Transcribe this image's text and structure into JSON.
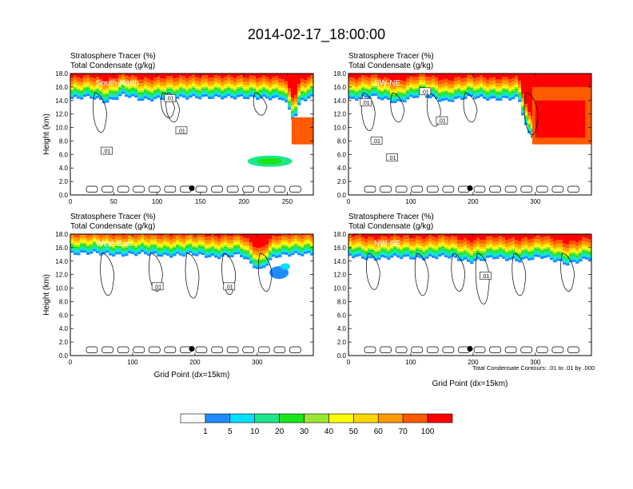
{
  "title": "2014-02-17_18:00:00",
  "colors": {
    "levels": [
      "#ffffff",
      "#1e8cff",
      "#00e0ff",
      "#1ee68c",
      "#19e619",
      "#9be632",
      "#ffff00",
      "#ffd700",
      "#ff9b00",
      "#ff5a00",
      "#ff0000"
    ]
  },
  "footnote": "Total Condensate Contours: .01 to .01 by .000",
  "chart_data": [
    {
      "type": "heatmap",
      "panel": "top-left",
      "region_label": "South-North",
      "title_lines": [
        "Stratosphere Tracer   (%)",
        "Total Condensate   (g/kg)"
      ],
      "ylabel": "Height (km)",
      "xlabel": "",
      "xlim": [
        0,
        280
      ],
      "ylim": [
        0,
        18
      ],
      "xticks": [
        0,
        50,
        100,
        150,
        200,
        250
      ],
      "yticks": [
        "0.0",
        "2.0",
        "4.0",
        "6.0",
        "8.0",
        "10.0",
        "12.0",
        "14.0",
        "16.0",
        "18.0"
      ],
      "contour_labels": [
        {
          "text": ".01",
          "x": 42,
          "y": 6.5
        },
        {
          "text": ".01",
          "x": 115,
          "y": 14.3
        },
        {
          "text": ".01",
          "x": 128,
          "y": 9.5
        }
      ],
      "marker": {
        "x": 140,
        "y": 1.0
      }
    },
    {
      "type": "heatmap",
      "panel": "top-right",
      "region_label": "SW-NE",
      "title_lines": [
        "Stratosphere Tracer   (%)",
        "Total Condensate   (g/kg)"
      ],
      "ylabel": "",
      "xlabel": "",
      "xlim": [
        0,
        390
      ],
      "ylim": [
        0,
        18
      ],
      "xticks": [
        0,
        100,
        200,
        300
      ],
      "yticks": [
        "0.0",
        "2.0",
        "4.0",
        "6.0",
        "8.0",
        "10.0",
        "12.0",
        "14.0",
        "16.0",
        "18.0"
      ],
      "contour_labels": [
        {
          "text": ".01",
          "x": 28,
          "y": 13.7
        },
        {
          "text": ".01",
          "x": 45,
          "y": 8.0
        },
        {
          "text": ".01",
          "x": 70,
          "y": 5.5
        },
        {
          "text": ".01",
          "x": 123,
          "y": 15.3
        },
        {
          "text": ".01",
          "x": 150,
          "y": 11.0
        }
      ],
      "marker": {
        "x": 195,
        "y": 1.0
      }
    },
    {
      "type": "heatmap",
      "panel": "bottom-left",
      "region_label": "West-East",
      "title_lines": [
        "Stratosphere Tracer   (%)",
        "Total Condensate   (g/kg)"
      ],
      "ylabel": "Height (km)",
      "xlabel": "Grid Point (dx=15km)",
      "xlim": [
        0,
        390
      ],
      "ylim": [
        0,
        18
      ],
      "xticks": [
        0,
        100,
        200,
        300
      ],
      "yticks": [
        "0.0",
        "2.0",
        "4.0",
        "6.0",
        "8.0",
        "10.0",
        "12.0",
        "14.0",
        "16.0",
        "18.0"
      ],
      "contour_labels": [
        {
          "text": ".01",
          "x": 140,
          "y": 10.2
        },
        {
          "text": ".01",
          "x": 255,
          "y": 10.2
        }
      ],
      "marker": {
        "x": 195,
        "y": 1.0
      }
    },
    {
      "type": "heatmap",
      "panel": "bottom-right",
      "region_label": "NW-SE",
      "title_lines": [
        "Stratosphere Tracer   (%)",
        "Total Condensate   (g/kg)"
      ],
      "ylabel": "",
      "xlabel": "Grid Point (dx=15km)",
      "xlim": [
        0,
        390
      ],
      "ylim": [
        0,
        18
      ],
      "xticks": [
        0,
        100,
        200,
        300
      ],
      "yticks": [
        "0.0",
        "2.0",
        "4.0",
        "6.0",
        "8.0",
        "10.0",
        "12.0",
        "14.0",
        "16.0",
        "18.0"
      ],
      "contour_labels": [
        {
          "text": ".01",
          "x": 220,
          "y": 11.8
        }
      ],
      "marker": {
        "x": 195,
        "y": 1.0
      }
    }
  ],
  "colorbar": {
    "labels": [
      "1",
      "5",
      "10",
      "20",
      "30",
      "40",
      "50",
      "60",
      "70",
      "100"
    ],
    "boundaries": [
      0,
      1,
      5,
      10,
      20,
      30,
      40,
      50,
      60,
      70,
      100
    ]
  }
}
